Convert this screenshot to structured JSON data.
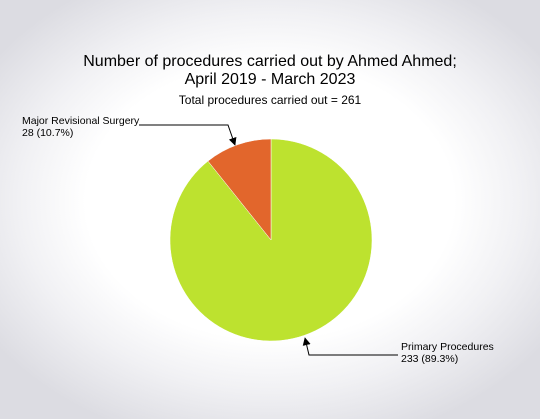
{
  "chart_data": {
    "type": "pie",
    "title": [
      "Number of procedures carried out by Ahmed Ahmed;",
      "April 2019 - March 2023"
    ],
    "subtitle": "Total procedures carried out = 261",
    "slices": [
      {
        "label": "Primary Procedures",
        "value": 233,
        "value_label": "233 (89.3%)",
        "color": "#bde22f"
      },
      {
        "label": "Major Revisional Surgery",
        "value": 28,
        "value_label": "28 (10.7%)",
        "color": "#e2662c"
      }
    ],
    "start_angle": "12 o'clock",
    "direction": "clockwise",
    "legend": "none"
  }
}
